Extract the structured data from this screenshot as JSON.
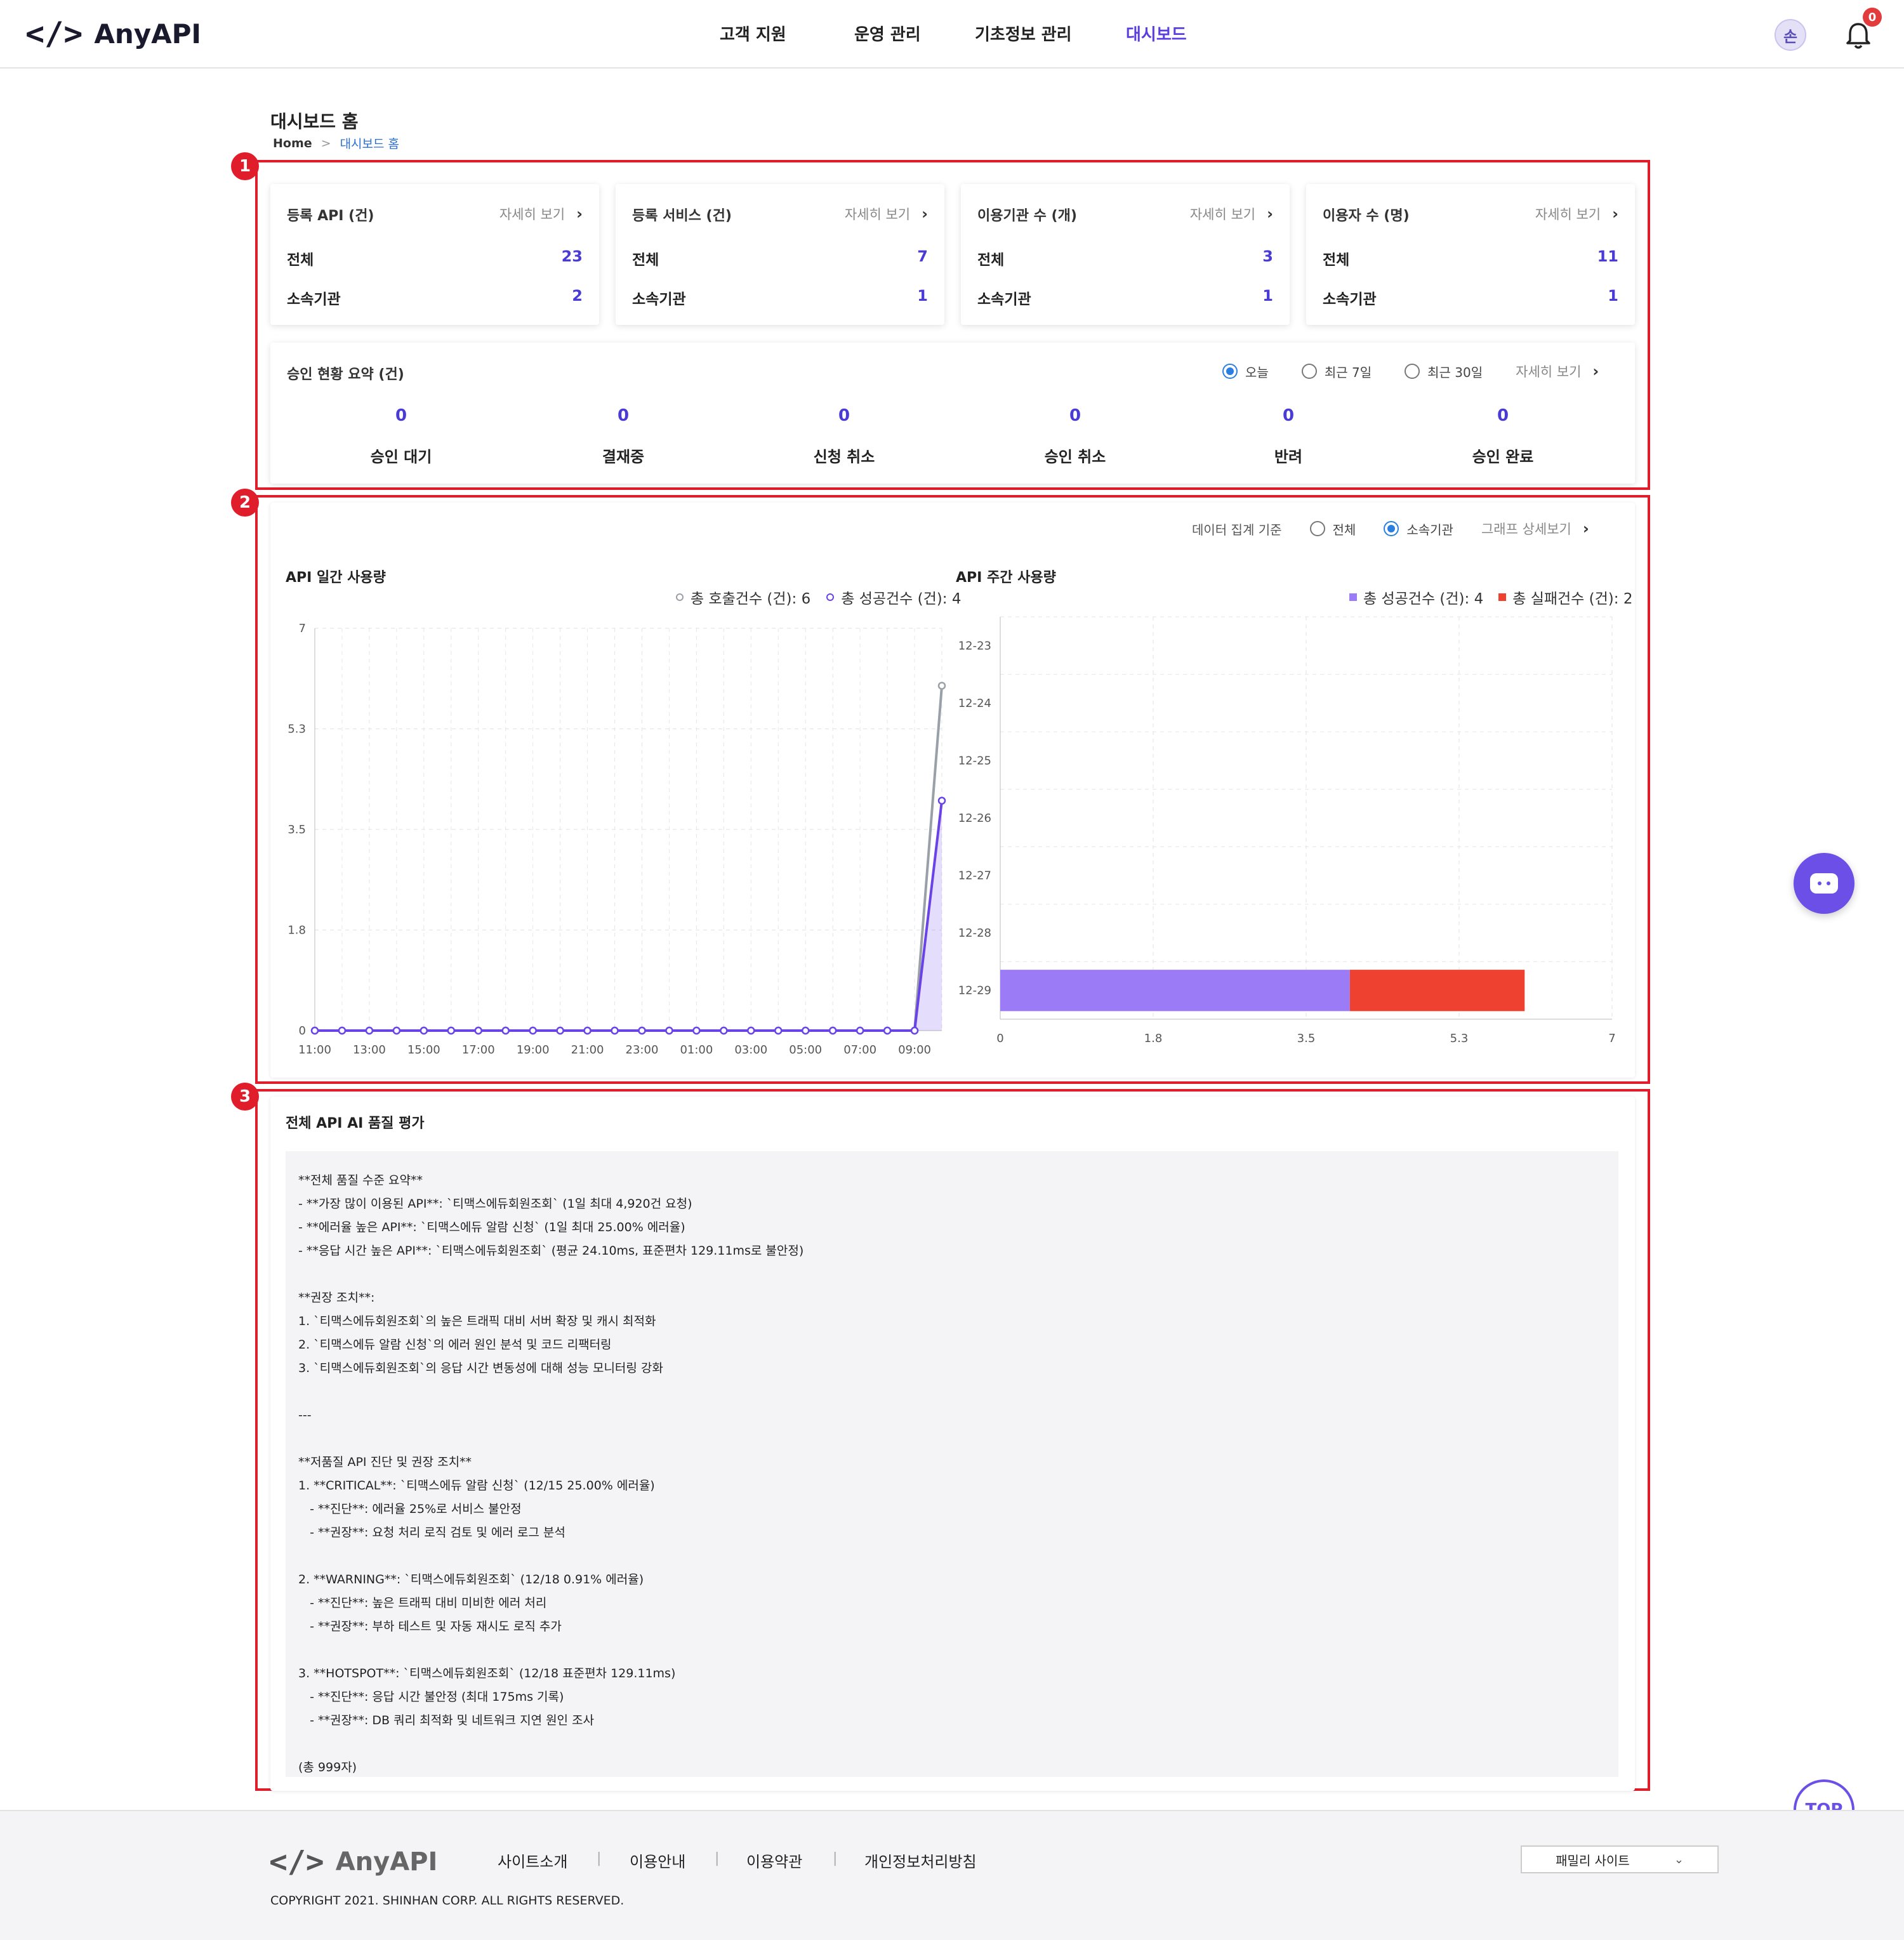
{
  "header": {
    "logo_mark": "</>",
    "logo_text": "AnyAPI",
    "nav": [
      "고객 지원",
      "운영 관리",
      "기초정보 관리",
      "대시보드"
    ],
    "active_nav": "대시보드",
    "avatar": "손",
    "notifications": "0"
  },
  "page": {
    "title": "대시보드 홈",
    "breadcrumb": {
      "home": "Home",
      "sep": ">",
      "current": "대시보드 홈"
    }
  },
  "markers": [
    "1",
    "2",
    "3"
  ],
  "summary_cards": [
    {
      "title": "등록 API (건)",
      "more": "자세히 보기",
      "total_label": "전체",
      "total": "23",
      "org_label": "소속기관",
      "org": "2"
    },
    {
      "title": "등록 서비스 (건)",
      "more": "자세히 보기",
      "total_label": "전체",
      "total": "7",
      "org_label": "소속기관",
      "org": "1"
    },
    {
      "title": "이용기관 수 (개)",
      "more": "자세히 보기",
      "total_label": "전체",
      "total": "3",
      "org_label": "소속기관",
      "org": "1"
    },
    {
      "title": "이용자 수 (명)",
      "more": "자세히 보기",
      "total_label": "전체",
      "total": "11",
      "org_label": "소속기관",
      "org": "1"
    }
  ],
  "approval": {
    "title": "승인 현황 요약 (건)",
    "periods": [
      {
        "label": "오늘",
        "selected": true
      },
      {
        "label": "최근 7일",
        "selected": false
      },
      {
        "label": "최근 30일",
        "selected": false
      }
    ],
    "more": "자세히 보기",
    "items": [
      {
        "label": "승인 대기",
        "value": "0"
      },
      {
        "label": "결재중",
        "value": "0"
      },
      {
        "label": "신청 취소",
        "value": "0"
      },
      {
        "label": "승인 취소",
        "value": "0"
      },
      {
        "label": "반려",
        "value": "0"
      },
      {
        "label": "승인 완료",
        "value": "0"
      }
    ]
  },
  "usage": {
    "basis_label": "데이터 집계 기준",
    "basis_options": [
      {
        "label": "전체",
        "selected": false
      },
      {
        "label": "소속기관",
        "selected": true
      }
    ],
    "detail": "그래프 상세보기",
    "daily_title": "API 일간 사용량",
    "weekly_title": "API 주간 사용량"
  },
  "chart_data": [
    {
      "type": "line",
      "title": "API 일간 사용량",
      "x": [
        "11:00",
        "12:00",
        "13:00",
        "14:00",
        "15:00",
        "16:00",
        "17:00",
        "18:00",
        "19:00",
        "20:00",
        "21:00",
        "22:00",
        "23:00",
        "00:00",
        "01:00",
        "02:00",
        "03:00",
        "04:00",
        "05:00",
        "06:00",
        "07:00",
        "08:00",
        "09:00",
        "10:00"
      ],
      "x_tick_labels": [
        "11:00",
        "13:00",
        "15:00",
        "17:00",
        "19:00",
        "21:00",
        "23:00",
        "01:00",
        "03:00",
        "05:00",
        "07:00",
        "09:00"
      ],
      "y_ticks": [
        "0",
        "1.8",
        "3.5",
        "5.3",
        "7"
      ],
      "ylim": [
        0,
        7
      ],
      "series": [
        {
          "name": "총 호출건수 (건): 6",
          "color": "#9aa0a8",
          "values": [
            0,
            0,
            0,
            0,
            0,
            0,
            0,
            0,
            0,
            0,
            0,
            0,
            0,
            0,
            0,
            0,
            0,
            0,
            0,
            0,
            0,
            0,
            0,
            6
          ]
        },
        {
          "name": "총 성공건수 (건): 4",
          "color": "#6a43e8",
          "values": [
            0,
            0,
            0,
            0,
            0,
            0,
            0,
            0,
            0,
            0,
            0,
            0,
            0,
            0,
            0,
            0,
            0,
            0,
            0,
            0,
            0,
            0,
            0,
            4
          ]
        }
      ],
      "grid": true
    },
    {
      "type": "bar",
      "orientation": "horizontal",
      "stacked": true,
      "title": "API 주간 사용량",
      "categories": [
        "12-23",
        "12-24",
        "12-25",
        "12-26",
        "12-27",
        "12-28",
        "12-29"
      ],
      "x_ticks": [
        "0",
        "1.8",
        "3.5",
        "5.3",
        "7"
      ],
      "xlim": [
        0,
        7
      ],
      "series": [
        {
          "name": "총 성공건수 (건): 4",
          "color": "#9b7cf6",
          "values": [
            0,
            0,
            0,
            0,
            0,
            0,
            4
          ]
        },
        {
          "name": "총 실패건수 (건): 2",
          "color": "#ef4130",
          "values": [
            0,
            0,
            0,
            0,
            0,
            0,
            2
          ]
        }
      ],
      "grid": true
    }
  ],
  "ai_eval": {
    "title": "전체 API AI 품질 평가",
    "text": "**전체 품질 수준 요약**\n- **가장 많이 이용된 API**: `티맥스에듀회원조회` (1일 최대 4,920건 요청)\n- **에러율 높은 API**: `티맥스에듀 알람 신청` (1일 최대 25.00% 에러율)\n- **응답 시간 높은 API**: `티맥스에듀회원조회` (평균 24.10ms, 표준편차 129.11ms로 불안정)\n\n**권장 조치**:\n1. `티맥스에듀회원조회`의 높은 트래픽 대비 서버 확장 및 캐시 최적화\n2. `티맥스에듀 알람 신청`의 에러 원인 분석 및 코드 리팩터링\n3. `티맥스에듀회원조회`의 응답 시간 변동성에 대해 성능 모니터링 강화\n\n---\n\n**저품질 API 진단 및 권장 조치**\n1. **CRITICAL**: `티맥스에듀 알람 신청` (12/15 25.00% 에러율)\n   - **진단**: 에러율 25%로 서비스 불안정\n   - **권장**: 요청 처리 로직 검토 및 에러 로그 분석\n\n2. **WARNING**: `티맥스에듀회원조회` (12/18 0.91% 에러율)\n   - **진단**: 높은 트래픽 대비 미비한 에러 처리\n   - **권장**: 부하 테스트 및 자동 재시도 로직 추가\n\n3. **HOTSPOT**: `티맥스에듀회원조회` (12/18 표준편차 129.11ms)\n   - **진단**: 응답 시간 불안정 (최대 175ms 기록)\n   - **권장**: DB 쿼리 최적화 및 네트워크 지연 원인 조사\n\n(총 999자)"
  },
  "footer": {
    "logo_mark": "</>",
    "logo_text": "AnyAPI",
    "links": [
      "사이트소개",
      "이용안내",
      "이용약관",
      "개인정보처리방침"
    ],
    "copyright": "COPYRIGHT 2021. SHINHAN CORP. ALL RIGHTS RESERVED.",
    "family_site": "패밀리 사이트",
    "top": "TOP"
  },
  "colors": {
    "accent": "#6a43e8",
    "highlight": "#e01d2a",
    "value": "#4a3bd6"
  }
}
